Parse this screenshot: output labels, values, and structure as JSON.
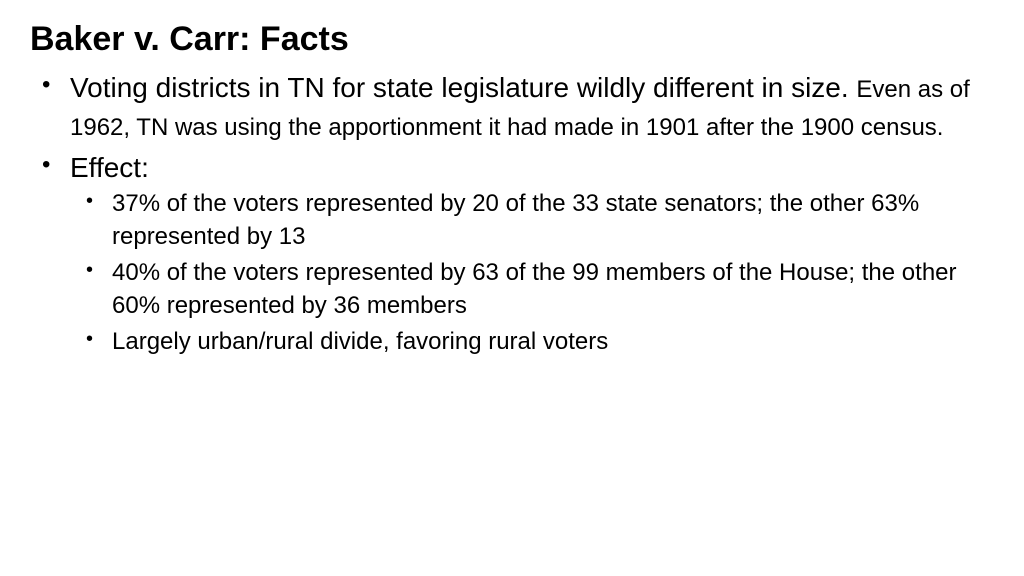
{
  "title": "Baker v. Carr: Facts",
  "bullets": {
    "item1_main": "Voting districts in TN for state legislature wildly different in size. ",
    "item1_sub": "Even as of 1962, TN was using the apportionment it had made in 1901 after the 1900 census.",
    "item2": "Effect:",
    "effect1": "37% of the voters represented by 20 of the 33 state senators; the other 63% represented by 13",
    "effect2": "40% of the voters represented by 63 of the 99 members of the House; the other 60% represented by 36 members",
    "effect3": "Largely urban/rural divide, favoring rural voters"
  },
  "styling": {
    "background_color": "#ffffff",
    "text_color": "#000000",
    "title_fontsize": 34,
    "title_fontweight": 700,
    "level1_fontsize": 28,
    "level2_fontsize": 24,
    "font_family": "Verdana"
  }
}
